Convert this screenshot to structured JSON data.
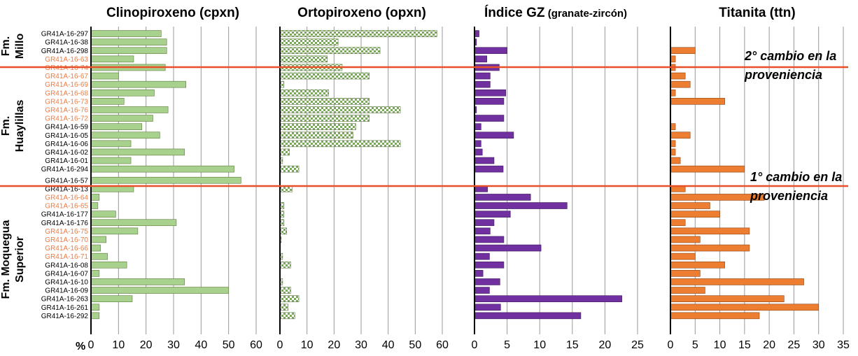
{
  "units_label": "%",
  "formations": [
    {
      "line1": "Fm.",
      "line2": "Millo"
    },
    {
      "line1": "Fm.",
      "line2": "Huaylillas"
    },
    {
      "line1": "Fm. Moquegua",
      "line2": "Superior"
    }
  ],
  "annotations": [
    {
      "line1": "2° cambio en la",
      "line2": "proveniencia"
    },
    {
      "line1": "1° cambio en la",
      "line2": "proveniencia"
    }
  ],
  "colors": {
    "highlight_label": "#f07b3f",
    "separator": "#e8502a",
    "grid": "#999999"
  },
  "samples": [
    {
      "name": "GR41A-16-297",
      "highlight": false
    },
    {
      "name": "GR41A-16-38",
      "highlight": false
    },
    {
      "name": "GR41A-16-298",
      "highlight": false
    },
    {
      "name": "GR41A-16-63",
      "highlight": true
    },
    {
      "name": "GR41A-16-74",
      "highlight": true
    },
    {
      "name": "GR41A-16-67",
      "highlight": true
    },
    {
      "name": "GR41A-16-69",
      "highlight": true
    },
    {
      "name": "GR41A-16-68",
      "highlight": true
    },
    {
      "name": "GR41A-16-73",
      "highlight": true
    },
    {
      "name": "GR41A-16-76",
      "highlight": true
    },
    {
      "name": "GR41A-16-72",
      "highlight": true
    },
    {
      "name": "GR41A-16-59",
      "highlight": false
    },
    {
      "name": "GR41A-16-05",
      "highlight": false
    },
    {
      "name": "GR41A-16-06",
      "highlight": false
    },
    {
      "name": "GR41A-16-02",
      "highlight": false
    },
    {
      "name": "GR41A-16-01",
      "highlight": false
    },
    {
      "name": "GR41A-16-294",
      "highlight": false
    },
    {
      "name": "GR41A-16-57",
      "highlight": false
    },
    {
      "name": "GR41A-16-13",
      "highlight": false
    },
    {
      "name": "GR41A-16-64",
      "highlight": true
    },
    {
      "name": "GR41A-16-65",
      "highlight": true
    },
    {
      "name": "GR41A-16-177",
      "highlight": false
    },
    {
      "name": "GR41A-16-176",
      "highlight": false
    },
    {
      "name": "GR41A-16-75",
      "highlight": true
    },
    {
      "name": "GR41A-16-70",
      "highlight": true
    },
    {
      "name": "GR41A-16-66",
      "highlight": true
    },
    {
      "name": "GR41A-16-71",
      "highlight": true
    },
    {
      "name": "GR41A-16-08",
      "highlight": false
    },
    {
      "name": "GR41A-16-07",
      "highlight": false
    },
    {
      "name": "GR41A-16-10",
      "highlight": false
    },
    {
      "name": "GR41A-16-09",
      "highlight": false
    },
    {
      "name": "GR41A-16-263",
      "highlight": false
    },
    {
      "name": "GR41A-16-261",
      "highlight": false
    },
    {
      "name": "GR41A-16-292",
      "highlight": false
    }
  ],
  "chart_data": [
    {
      "type": "bar",
      "orientation": "horizontal",
      "title": "Clinopiroxeno (cpxn)",
      "fill": "#a9d18e",
      "stroke": "#5a7a3a",
      "pattern": "solid",
      "xlim": [
        0,
        60
      ],
      "ticks": [
        "0",
        "10",
        "20",
        "30",
        "40",
        "50",
        "60"
      ],
      "values": [
        25.5,
        27.5,
        27.5,
        15.5,
        27,
        10,
        34.5,
        23,
        12,
        28,
        22.5,
        18.5,
        25,
        14.5,
        34,
        14.5,
        52,
        54.5,
        15.5,
        3,
        2.5,
        9,
        31,
        17,
        5.5,
        3.5,
        6,
        13,
        3,
        34,
        50,
        15,
        3,
        3
      ]
    },
    {
      "type": "bar",
      "orientation": "horizontal",
      "title": "Ortopiroxeno (opxn)",
      "fill": "#a9d18e",
      "stroke": "#5a7a3a",
      "pattern": "checker",
      "xlim": [
        0,
        60
      ],
      "ticks": [
        "0",
        "10",
        "20",
        "30",
        "40",
        "50",
        "60"
      ],
      "values": [
        58,
        21.5,
        37,
        17.5,
        23,
        33,
        1.5,
        18,
        33,
        44.5,
        33,
        28,
        27,
        44.5,
        3.5,
        1,
        7,
        0,
        4.5,
        0,
        1.5,
        1.5,
        1.5,
        2.5,
        0.5,
        0,
        1,
        4,
        0,
        1,
        4,
        7,
        3,
        5.5
      ]
    },
    {
      "type": "bar",
      "orientation": "horizontal",
      "title": "Índice GZ",
      "title_suffix": "(granate-zircón)",
      "fill": "#70309f",
      "stroke": "#3d1a5c",
      "pattern": "solid",
      "xlim": [
        0,
        25
      ],
      "ticks": [
        "0",
        "5",
        "10",
        "15",
        "20",
        "25"
      ],
      "values": [
        0.7,
        0.3,
        5,
        1.9,
        3.8,
        2.4,
        2.4,
        4.8,
        4.5,
        0.3,
        4.5,
        1,
        6,
        1,
        1.2,
        3,
        4.4,
        0,
        2,
        8.6,
        14.2,
        5.5,
        3,
        2.4,
        4.5,
        10.2,
        2.3,
        4.5,
        1.3,
        3.9,
        2.3,
        22.6,
        4,
        16.3
      ]
    },
    {
      "type": "bar",
      "orientation": "horizontal",
      "title": "Titanita (ttn)",
      "fill": "#ed7d31",
      "stroke": "#8a4515",
      "pattern": "solid",
      "xlim": [
        0,
        35
      ],
      "ticks": [
        "0",
        "5",
        "10",
        "15",
        "20",
        "25",
        "30",
        "35"
      ],
      "values": [
        0,
        0,
        5,
        1,
        1,
        3,
        4,
        1,
        11,
        0,
        0,
        1,
        4,
        1,
        1,
        2,
        15,
        0,
        3,
        19,
        8,
        10,
        3,
        16,
        6,
        16,
        5,
        11,
        6,
        27,
        7,
        23,
        30,
        18
      ]
    }
  ]
}
